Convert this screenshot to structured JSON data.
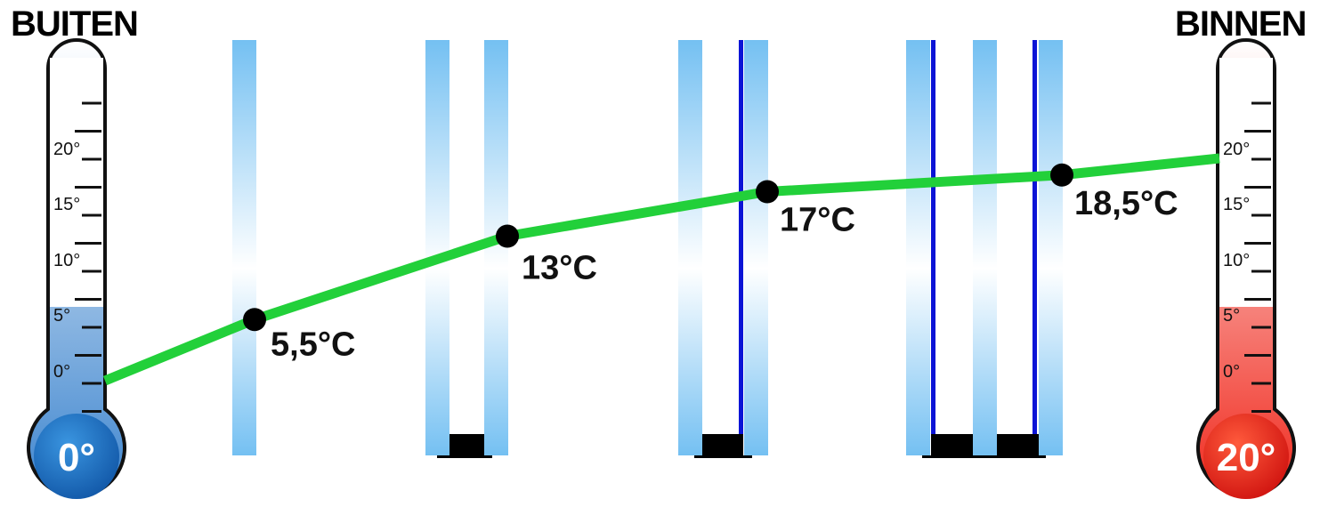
{
  "labels": {
    "outside": "BUITEN",
    "inside": "BINNEN"
  },
  "thermometers": {
    "outside": {
      "reading": "0°",
      "ticks": [
        "20°",
        "15°",
        "10°",
        "5°",
        "0°"
      ],
      "color": "#1f6fc0"
    },
    "inside": {
      "reading": "20°",
      "ticks": [
        "20°",
        "15°",
        "10°",
        "5°",
        "0°"
      ],
      "color": "#e8231a"
    }
  },
  "chart_data": {
    "type": "line",
    "series": [
      {
        "values": [
          0,
          5.5,
          13,
          17,
          18.5,
          20
        ]
      }
    ],
    "point_labels": [
      "",
      "5,5°C",
      "13°C",
      "17°C",
      "18,5°C",
      ""
    ],
    "ylim": [
      0,
      20
    ],
    "line_color": "#22d03a"
  },
  "glazing": {
    "glass_color": "#7cc4f2",
    "coating_color": "#0b14d6",
    "spacer_color": "#000000"
  }
}
